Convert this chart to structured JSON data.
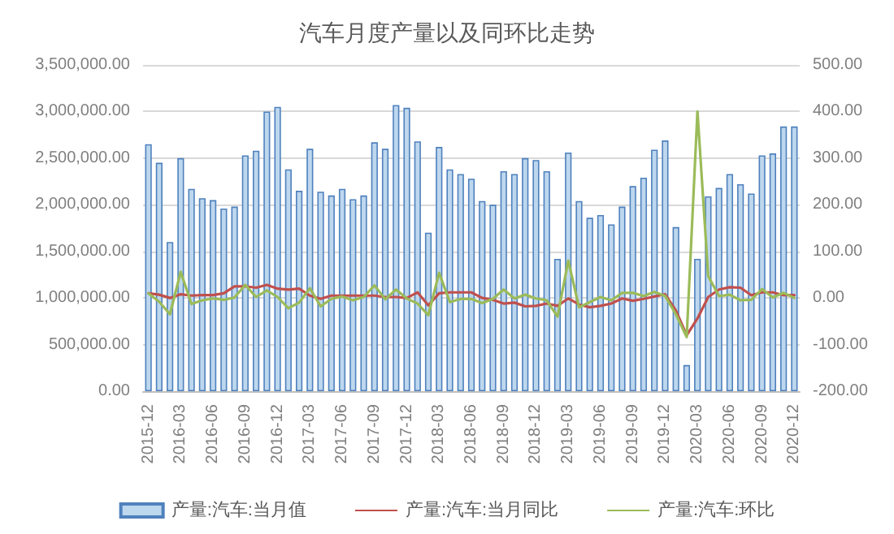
{
  "chart_data": {
    "type": "bar",
    "title": "汽车月度产量以及同环比走势",
    "categories": [
      "2015-12",
      null,
      null,
      "2016-03",
      null,
      null,
      "2016-06",
      null,
      null,
      "2016-09",
      null,
      null,
      "2016-12",
      null,
      null,
      "2017-03",
      null,
      null,
      "2017-06",
      null,
      null,
      "2017-09",
      null,
      null,
      "2017-12",
      null,
      null,
      "2018-03",
      null,
      null,
      "2018-06",
      null,
      null,
      "2018-09",
      null,
      null,
      "2018-12",
      null,
      null,
      "2019-03",
      null,
      null,
      "2019-06",
      null,
      null,
      "2019-09",
      null,
      null,
      "2019-12",
      null,
      null,
      "2020-03",
      null,
      null,
      "2020-06",
      null,
      null,
      "2020-09",
      null,
      null,
      "2020-12"
    ],
    "series": [
      {
        "name": "产量:汽车:当月值",
        "color": "#bdd7ee",
        "values": [
          2650000,
          2450000,
          1600000,
          2500000,
          2170000,
          2070000,
          2050000,
          1960000,
          1980000,
          2530000,
          2580000,
          3000000,
          3050000,
          2380000,
          2150000,
          2600000,
          2140000,
          2100000,
          2170000,
          2060000,
          2100000,
          2670000,
          2600000,
          3070000,
          3040000,
          2680000,
          1700000,
          2620000,
          2380000,
          2330000,
          2280000,
          2040000,
          2000000,
          2360000,
          2330000,
          2500000,
          2480000,
          2360000,
          1420000,
          2560000,
          2040000,
          1860000,
          1890000,
          1790000,
          1980000,
          2200000,
          2290000,
          2590000,
          2690000,
          1760000,
          280000,
          1420000,
          2090000,
          2180000,
          2330000,
          2220000,
          2120000,
          2530000,
          2550000,
          2840000,
          2840000
        ]
      },
      {
        "name": "产量:汽车:当月同比",
        "type": "line",
        "axis": "y2",
        "color": "#c0504d",
        "values": [
          10,
          7,
          0,
          8,
          5,
          6,
          6,
          10,
          25,
          25,
          22,
          28,
          20,
          18,
          20,
          5,
          -2,
          5,
          5,
          5,
          5,
          5,
          2,
          2,
          0,
          12,
          -16,
          10,
          12,
          12,
          12,
          0,
          -4,
          -12,
          -10,
          -18,
          -17,
          -12,
          -17,
          -1,
          -14,
          -20,
          -17,
          -12,
          -1,
          -6,
          -2,
          3,
          8,
          -27,
          -80,
          -44,
          2,
          18,
          23,
          22,
          6,
          12,
          12,
          6,
          6
        ]
      },
      {
        "name": "产量:汽车:环比",
        "type": "line",
        "axis": "y2",
        "color": "#9bbb59",
        "values": [
          10,
          -8,
          -35,
          56,
          -13,
          -5,
          -1,
          -4,
          1,
          28,
          2,
          16,
          2,
          -22,
          -10,
          21,
          -18,
          -2,
          3,
          -5,
          2,
          27,
          -3,
          18,
          -1,
          -12,
          -37,
          54,
          -9,
          -2,
          -2,
          -11,
          -2,
          18,
          -1,
          7,
          -1,
          -5,
          -40,
          80,
          -20,
          -9,
          2,
          -5,
          11,
          11,
          4,
          13,
          4,
          -35,
          -84,
          400,
          47,
          4,
          7,
          -5,
          -4,
          19,
          1,
          11,
          0
        ]
      }
    ],
    "ylim": [
      0,
      3500000
    ],
    "yticks": [
      {
        "value": 0,
        "label": "0.00"
      },
      {
        "value": 500000,
        "label": "500,000.00"
      },
      {
        "value": 1000000,
        "label": "1,000,000.00"
      },
      {
        "value": 1500000,
        "label": "1,500,000.00"
      },
      {
        "value": 2000000,
        "label": "2,000,000.00"
      },
      {
        "value": 2500000,
        "label": "2,500,000.00"
      },
      {
        "value": 3000000,
        "label": "3,000,000.00"
      },
      {
        "value": 3500000,
        "label": "3,500,000.00"
      }
    ],
    "y2lim": [
      -200,
      500
    ],
    "y2ticks": [
      {
        "value": -200,
        "label": "-200.00"
      },
      {
        "value": -100,
        "label": "-100.00"
      },
      {
        "value": 0,
        "label": "0.00"
      },
      {
        "value": 100,
        "label": "100.00"
      },
      {
        "value": 200,
        "label": "200.00"
      },
      {
        "value": 300,
        "label": "300.00"
      },
      {
        "value": 400,
        "label": "400.00"
      },
      {
        "value": 500,
        "label": "500.00"
      }
    ],
    "grid": "y",
    "legend": "bottom",
    "marker": "none",
    "line_style": "solid"
  }
}
